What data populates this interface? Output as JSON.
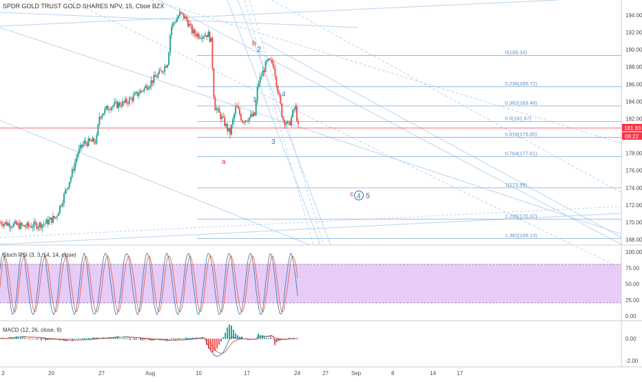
{
  "header": {
    "title": "SPDR GOLD TRUST GOLD SHARES NPV, 15, Cboe BZX"
  },
  "price_axis": {
    "ticks": [
      "194.00",
      "192.00",
      "190.00",
      "188.00",
      "186.00",
      "184.00",
      "182.00",
      "180.00",
      "178.00",
      "176.00",
      "174.00",
      "172.00",
      "170.00",
      "168.00"
    ],
    "last_price": "181.83",
    "countdown": "06:22",
    "accent": "#f23645"
  },
  "date_axis": {
    "ticks": [
      "3",
      "20",
      "27",
      "Aug",
      "10",
      "17",
      "24",
      "27",
      "Sep",
      "8",
      "14",
      "17"
    ]
  },
  "fib": {
    "color": "#5b8fc9",
    "levels": [
      {
        "label": "0(189.34)",
        "v": 189.34
      },
      {
        "label": "0.236(185.72)",
        "v": 185.72
      },
      {
        "label": "0.382(183.48)",
        "v": 183.48
      },
      {
        "label": "0.5(181.67)",
        "v": 181.67
      },
      {
        "label": "0.618(179.85)",
        "v": 179.85
      },
      {
        "label": "0.764(177.61)",
        "v": 177.61
      },
      {
        "label": "1(173.99)",
        "v": 173.99
      },
      {
        "label": "1.236(170.37)",
        "v": 170.37
      },
      {
        "label": "1.382(168.13)",
        "v": 168.13
      }
    ]
  },
  "waves": {
    "blue": [
      "1",
      "2",
      "3",
      "4",
      "5",
      "4"
    ],
    "red": [
      "a",
      "b",
      "c"
    ]
  },
  "stoch_rsi": {
    "title": "Stoch RSI (3, 3, 14, 14, close)",
    "ticks": [
      "100.00",
      "75.00",
      "50.00",
      "25.00",
      "0.00"
    ],
    "band_color": "#e1c3f5"
  },
  "macd": {
    "title": "MACD (12, 26, close, 9)",
    "ticks": [
      "0.00",
      "-2.00"
    ]
  },
  "chart_data": {
    "type": "candlestick",
    "title": "SPDR GOLD TRUST GOLD SHARES NPV, 15, Cboe BZX",
    "ylim": [
      166.8,
      195.2
    ],
    "anchors": [
      [
        0,
        170.0
      ],
      [
        0.04,
        169.5
      ],
      [
        0.07,
        169.8
      ],
      [
        0.09,
        170.6
      ],
      [
        0.1,
        172.5
      ],
      [
        0.115,
        175.5
      ],
      [
        0.125,
        178.0
      ],
      [
        0.135,
        179.2
      ],
      [
        0.155,
        179.4
      ],
      [
        0.16,
        182.3
      ],
      [
        0.175,
        183.4
      ],
      [
        0.2,
        183.8
      ],
      [
        0.215,
        184.5
      ],
      [
        0.235,
        185.7
      ],
      [
        0.26,
        187.5
      ],
      [
        0.27,
        188.6
      ],
      [
        0.275,
        192.6
      ],
      [
        0.29,
        194.2
      ],
      [
        0.3,
        193.5
      ],
      [
        0.31,
        192.0
      ],
      [
        0.32,
        191.7
      ],
      [
        0.335,
        191.8
      ],
      [
        0.34,
        190.9
      ],
      [
        0.345,
        183.5
      ],
      [
        0.36,
        181.7
      ],
      [
        0.37,
        180.2
      ],
      [
        0.38,
        183.5
      ],
      [
        0.39,
        181.8
      ],
      [
        0.41,
        182.4
      ],
      [
        0.415,
        186.0
      ],
      [
        0.43,
        188.6
      ],
      [
        0.44,
        188.4
      ],
      [
        0.455,
        182.0
      ],
      [
        0.465,
        181.2
      ],
      [
        0.475,
        183.5
      ],
      [
        0.48,
        181.0
      ]
    ]
  }
}
